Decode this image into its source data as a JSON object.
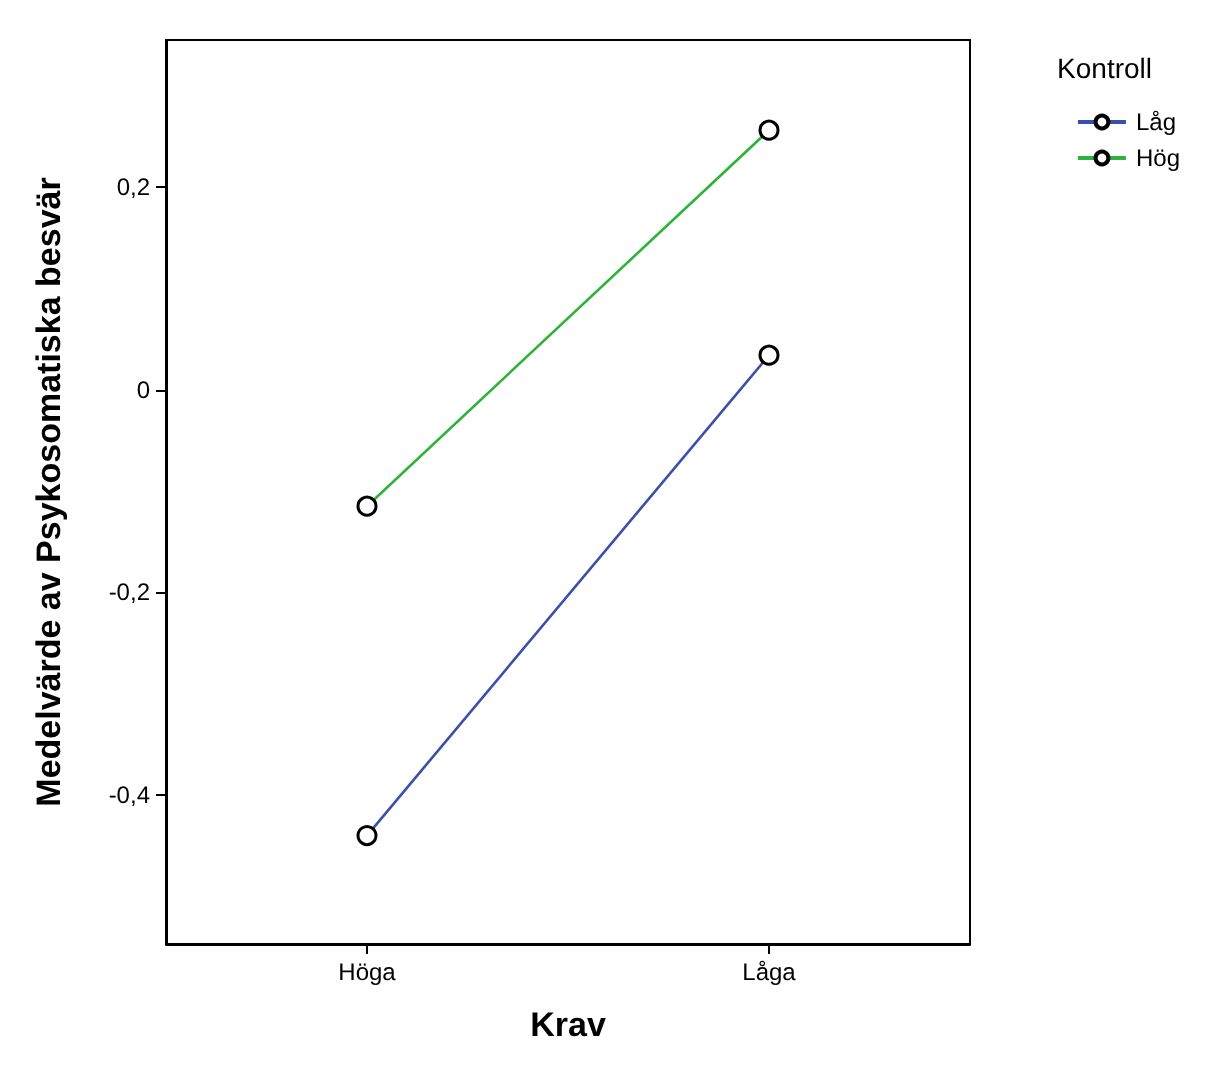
{
  "chart_data": {
    "type": "line",
    "xlabel": "Krav",
    "ylabel": "Medelvärde av Psykosomatiska besvär",
    "legend_title": "Kontroll",
    "categories": [
      "Höga",
      "Låga"
    ],
    "series": [
      {
        "name": "Låg",
        "color": "#3b4ea8",
        "values": [
          -0.44,
          0.034
        ]
      },
      {
        "name": "Hög",
        "color": "#2db33a",
        "values": [
          -0.115,
          0.256
        ]
      }
    ],
    "ylim": [
      -0.547,
      0.345
    ],
    "yticks": [
      {
        "value": -0.4,
        "label": "-0,4"
      },
      {
        "value": -0.2,
        "label": "-0,2"
      },
      {
        "value": 0,
        "label": "0"
      },
      {
        "value": 0.2,
        "label": "0,2"
      }
    ],
    "marker": "circle",
    "legend": "top right",
    "grid": false
  }
}
